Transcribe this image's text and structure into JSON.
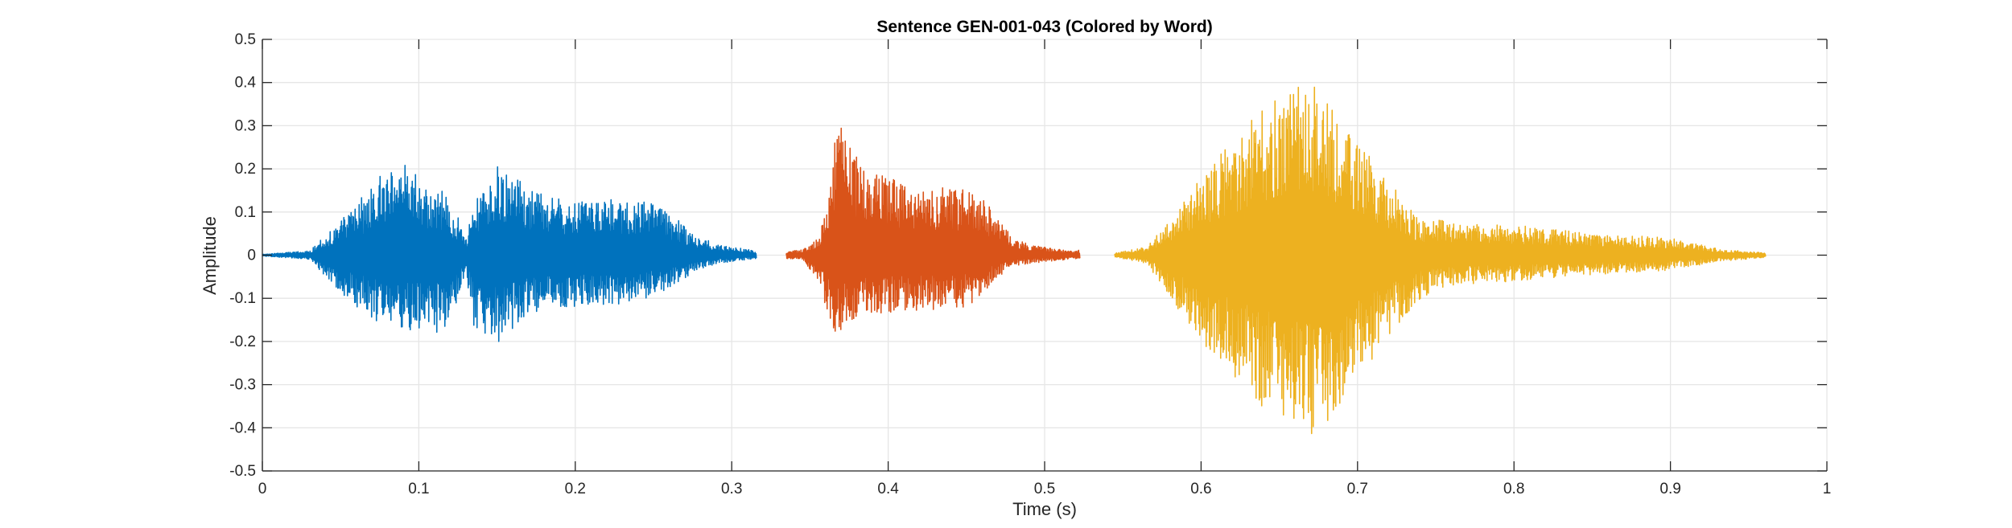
{
  "chart_data": {
    "type": "line",
    "title": "Sentence GEN-001-043 (Colored by Word)",
    "xlabel": "Time (s)",
    "ylabel": "Amplitude",
    "xlim": [
      0,
      1
    ],
    "ylim": [
      -0.5,
      0.5
    ],
    "xticks": [
      0,
      0.1,
      0.2,
      0.3,
      0.4,
      0.5,
      0.6,
      0.7,
      0.8,
      0.9,
      1
    ],
    "xtick_labels": [
      "0",
      "0.1",
      "0.2",
      "0.3",
      "0.4",
      "0.5",
      "0.6",
      "0.7",
      "0.8",
      "0.9",
      "1"
    ],
    "yticks": [
      0.5,
      0.4,
      0.3,
      0.2,
      0.1,
      0,
      -0.1,
      -0.2,
      -0.3,
      -0.4,
      -0.5
    ],
    "ytick_labels": [
      "0.5",
      "0.4",
      "0.3",
      "0.2",
      "0.1",
      "0",
      "-0.1",
      "-0.2",
      "-0.3",
      "-0.4",
      "-0.5"
    ],
    "grid": true,
    "series": [
      {
        "color": "#0072BD",
        "x": [
          0.0,
          0.03,
          0.05,
          0.07,
          0.085,
          0.1,
          0.115,
          0.125,
          0.13,
          0.135,
          0.15,
          0.165,
          0.18,
          0.2,
          0.22,
          0.24,
          0.26,
          0.275,
          0.29,
          0.3,
          0.315
        ],
        "max": [
          0.002,
          0.01,
          0.08,
          0.16,
          0.23,
          0.18,
          0.15,
          0.09,
          0.04,
          0.12,
          0.21,
          0.17,
          0.14,
          0.13,
          0.13,
          0.135,
          0.1,
          0.05,
          0.025,
          0.02,
          0.01
        ],
        "min": [
          -0.002,
          -0.01,
          -0.09,
          -0.15,
          -0.17,
          -0.18,
          -0.18,
          -0.1,
          -0.05,
          -0.17,
          -0.21,
          -0.15,
          -0.13,
          -0.12,
          -0.115,
          -0.11,
          -0.08,
          -0.04,
          -0.02,
          -0.015,
          -0.008
        ]
      },
      {
        "color": "#D95319",
        "x": [
          0.335,
          0.345,
          0.355,
          0.36,
          0.365,
          0.37,
          0.38,
          0.39,
          0.41,
          0.43,
          0.45,
          0.46,
          0.47,
          0.48,
          0.5,
          0.515,
          0.522
        ],
        "max": [
          0.01,
          0.012,
          0.04,
          0.1,
          0.27,
          0.3,
          0.23,
          0.2,
          0.17,
          0.16,
          0.15,
          0.13,
          0.09,
          0.035,
          0.02,
          0.01,
          0.012
        ],
        "min": [
          -0.008,
          -0.01,
          -0.06,
          -0.13,
          -0.19,
          -0.17,
          -0.15,
          -0.14,
          -0.13,
          -0.13,
          -0.12,
          -0.09,
          -0.05,
          -0.025,
          -0.015,
          -0.01,
          -0.008
        ]
      },
      {
        "color": "#EDB120",
        "x": [
          0.545,
          0.565,
          0.58,
          0.6,
          0.62,
          0.64,
          0.66,
          0.67,
          0.685,
          0.7,
          0.72,
          0.74,
          0.75,
          0.76,
          0.8,
          0.85,
          0.9,
          0.93,
          0.96
        ],
        "max": [
          0.005,
          0.02,
          0.08,
          0.18,
          0.27,
          0.34,
          0.39,
          0.41,
          0.34,
          0.27,
          0.17,
          0.08,
          0.09,
          0.075,
          0.07,
          0.05,
          0.04,
          0.015,
          0.005
        ],
        "min": [
          -0.005,
          -0.02,
          -0.1,
          -0.2,
          -0.28,
          -0.36,
          -0.41,
          -0.42,
          -0.39,
          -0.3,
          -0.19,
          -0.1,
          -0.08,
          -0.07,
          -0.06,
          -0.045,
          -0.035,
          -0.015,
          -0.005
        ]
      }
    ]
  }
}
